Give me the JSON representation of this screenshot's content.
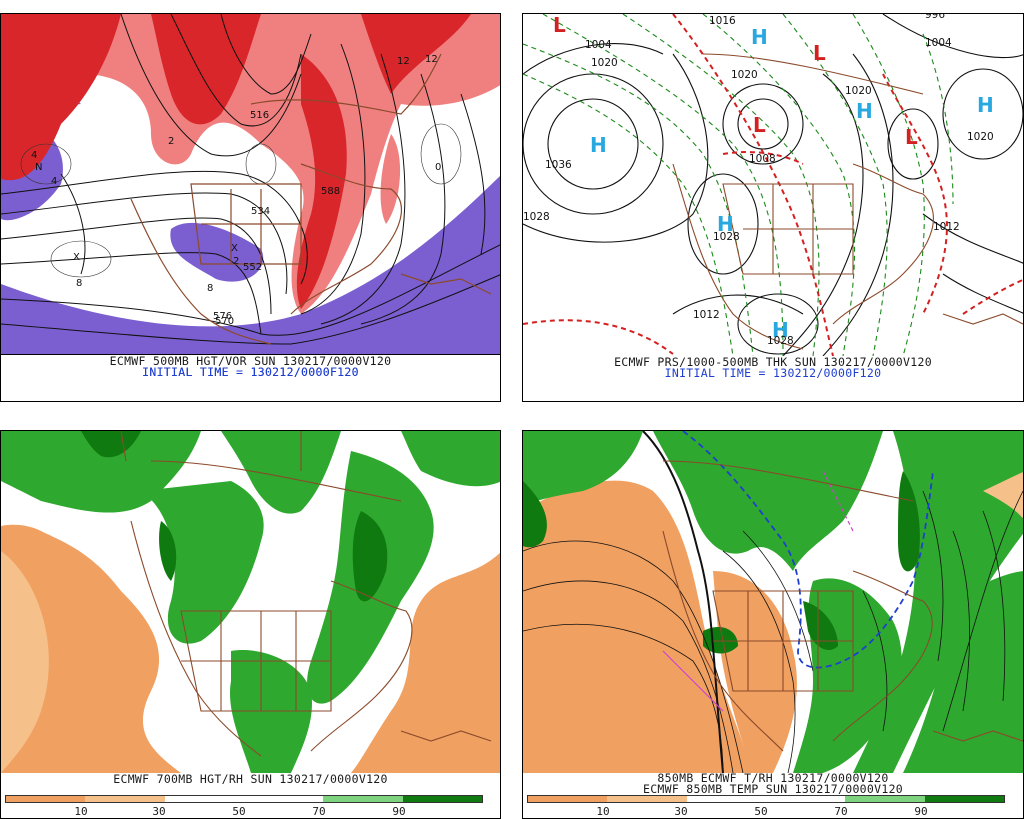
{
  "panels": {
    "top_left": {
      "caption": "ECMWF 500MB HGT/VOR SUN 130217/0000V120",
      "init": "INITIAL TIME = 130212/0000F120",
      "labels": [
        "12",
        "12",
        "8",
        "8",
        "4",
        "4",
        "2",
        "2",
        "0",
        "516",
        "534",
        "552",
        "570",
        "576",
        "588",
        "X",
        "N",
        "X"
      ]
    },
    "top_right": {
      "caption": "ECMWF PRS/1000-500MB THK SUN 130217/0000V120",
      "init": "INITIAL TIME = 130212/0000F120",
      "highs": [
        "H",
        "H",
        "H",
        "H",
        "H",
        "H"
      ],
      "lows": [
        "L",
        "L",
        "L",
        "L"
      ],
      "isobars": [
        "1036",
        "1028",
        "1020",
        "1020",
        "1020",
        "1008",
        "1004",
        "1004",
        "996",
        "1012",
        "1012",
        "1028",
        "1028",
        "1020",
        "1016"
      ]
    },
    "bottom_left": {
      "caption": "ECMWF 700MB HGT/RH SUN 130217/0000V120",
      "colorbar_ticks": [
        "10",
        "30",
        "50",
        "70",
        "90"
      ]
    },
    "bottom_right": {
      "caption": "850MB ECMWF T/RH 130217/0000V120",
      "caption2": "ECMWF 850MB TEMP SUN 130217/0000V120",
      "colorbar_ticks": [
        "10",
        "30",
        "50",
        "70",
        "90"
      ]
    }
  },
  "colors": {
    "vort_red": "#d9262b",
    "vort_pink": "#f08080",
    "vort_purple": "#7b5fd0",
    "rh_green": "#2ea82e",
    "rh_dkgreen": "#0f7a0f",
    "rh_orange": "#f0a060",
    "rh_lt_orange": "#f6c08a",
    "border_brown": "#8b4a2b",
    "high_cyan": "#29a8e0",
    "low_red": "#d42020"
  }
}
